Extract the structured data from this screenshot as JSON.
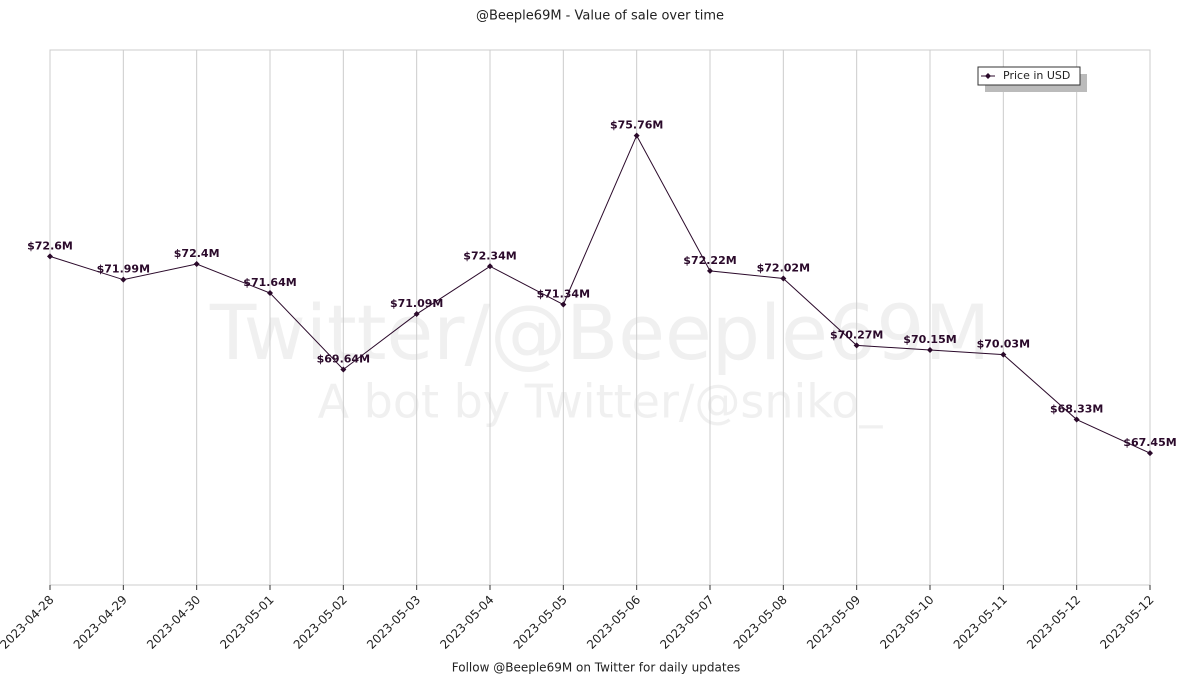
{
  "chart_data": {
    "type": "line",
    "title": "@Beeple69M - Value of sale over time",
    "footer": "Follow @Beeple69M on Twitter for daily updates",
    "watermark": [
      "Twitter/@Beeple69M",
      "A bot by Twitter/@sniko_"
    ],
    "categories": [
      "2023-04-28",
      "2023-04-29",
      "2023-04-30",
      "2023-05-01",
      "2023-05-02",
      "2023-05-03",
      "2023-05-04",
      "2023-05-05",
      "2023-05-06",
      "2023-05-07",
      "2023-05-08",
      "2023-05-09",
      "2023-05-10",
      "2023-05-11",
      "2023-05-12",
      "2023-05-12"
    ],
    "series": [
      {
        "name": "Price in USD",
        "color": "#2b0a2b",
        "values": [
          72.6,
          71.99,
          72.4,
          71.64,
          69.64,
          71.09,
          72.34,
          71.34,
          75.76,
          72.22,
          72.02,
          70.27,
          70.15,
          70.03,
          68.33,
          67.45
        ],
        "value_labels": [
          "$72.6M",
          "$71.99M",
          "$72.4M",
          "$71.64M",
          "$69.64M",
          "$71.09M",
          "$72.34M",
          "$71.34M",
          "$75.76M",
          "$72.22M",
          "$72.02M",
          "$70.27M",
          "$70.15M",
          "$70.03M",
          "$68.33M",
          "$67.45M"
        ]
      }
    ],
    "ylim": [
      64,
      78
    ],
    "grid": true,
    "legend": "upper right"
  }
}
